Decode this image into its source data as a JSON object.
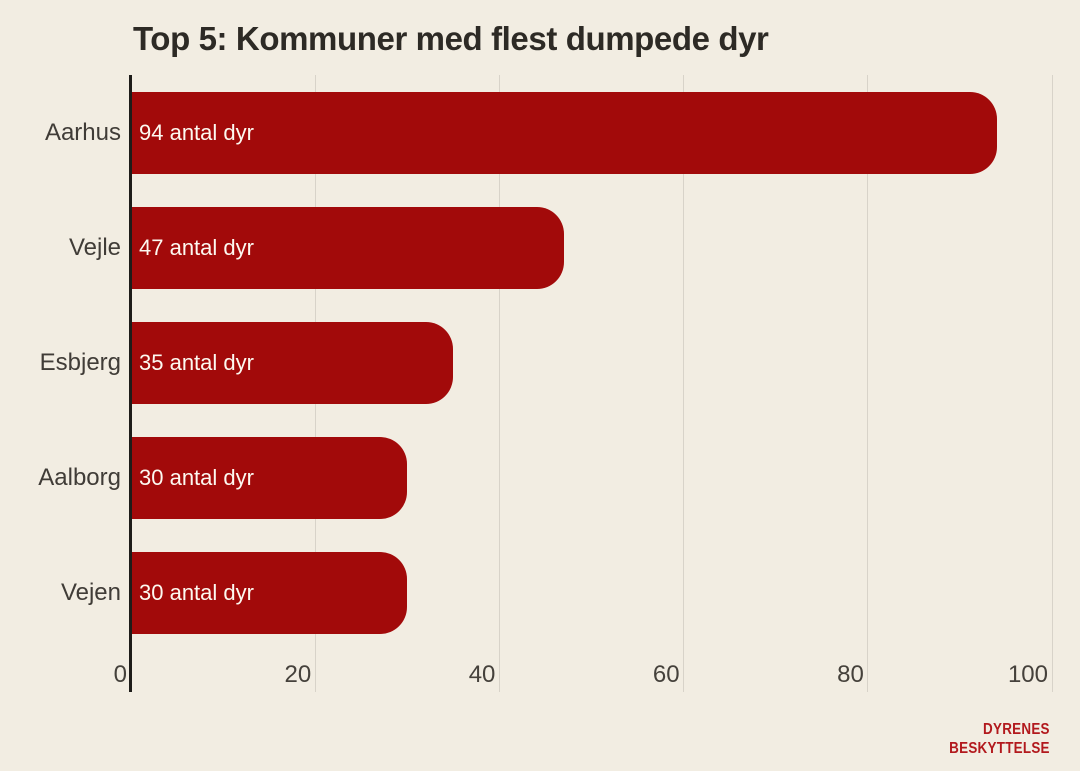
{
  "chart_data": {
    "type": "bar",
    "orientation": "horizontal",
    "title": "Top 5: Kommuner med flest dumpede dyr",
    "categories": [
      "Aarhus",
      "Vejle",
      "Esbjerg",
      "Aalborg",
      "Vejen"
    ],
    "values": [
      94,
      47,
      35,
      30,
      30
    ],
    "bar_labels": [
      "94 antal dyr",
      "47 antal dyr",
      "35 antal dyr",
      "30 antal dyr",
      "30 antal dyr"
    ],
    "xlabel": "",
    "ylabel": "",
    "xlim": [
      0,
      100
    ],
    "x_ticks": [
      0,
      20,
      40,
      60,
      80,
      100
    ],
    "grid": true,
    "legend": false,
    "colors": {
      "bar": "#a20a0a",
      "background": "#f2ede2",
      "gridline": "#d8d3c9",
      "axis_line": "#1e1c19",
      "title_text": "#2d2a25",
      "category_text": "#403c37",
      "tick_text": "#45413b",
      "bar_value_text": "#fdf9f1"
    }
  },
  "branding": {
    "line1": "DYRENES",
    "line2": "BESKYTTELSE",
    "color": "#b2191d"
  }
}
